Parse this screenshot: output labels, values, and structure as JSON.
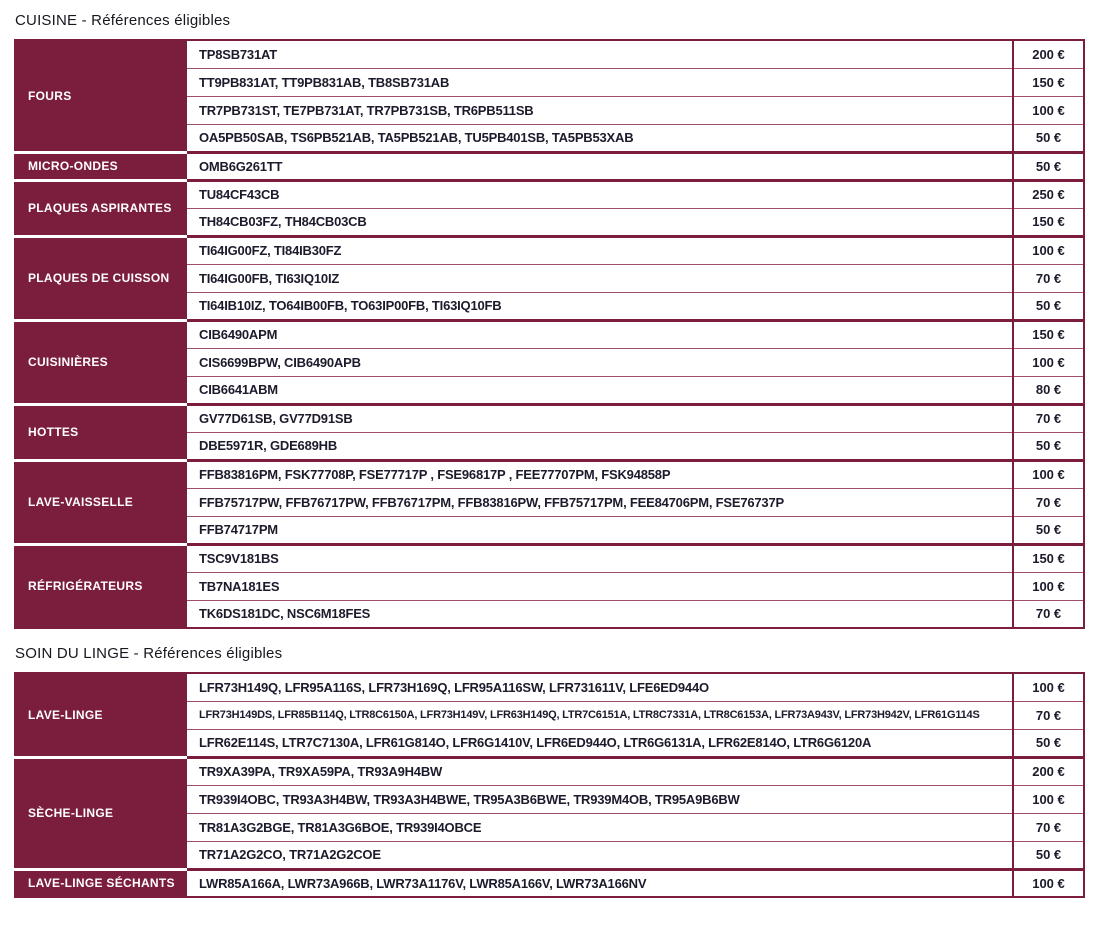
{
  "colors": {
    "accent": "#7b1e3d",
    "row_divider": "#a34d6d",
    "text": "#1b1b2c"
  },
  "sections": [
    {
      "title": "CUISINE - Références éligibles",
      "groups": [
        {
          "category": "FOURS",
          "rows": [
            {
              "refs": "TP8SB731AT",
              "price": "200 €"
            },
            {
              "refs": "TT9PB831AT, TT9PB831AB, TB8SB731AB",
              "price": "150 €"
            },
            {
              "refs": "TR7PB731ST, TE7PB731AT, TR7PB731SB, TR6PB511SB",
              "price": "100 €"
            },
            {
              "refs": "OA5PB50SAB, TS6PB521AB, TA5PB521AB, TU5PB401SB, TA5PB53XAB",
              "price": "50 €"
            }
          ]
        },
        {
          "category": "MICRO-ONDES",
          "rows": [
            {
              "refs": "OMB6G261TT",
              "price": "50 €"
            }
          ]
        },
        {
          "category": "PLAQUES ASPIRANTES",
          "rows": [
            {
              "refs": "TU84CF43CB",
              "price": "250 €"
            },
            {
              "refs": "TH84CB03FZ, TH84CB03CB",
              "price": "150 €"
            }
          ]
        },
        {
          "category": "PLAQUES DE CUISSON",
          "rows": [
            {
              "refs": "TI64IG00FZ, TI84IB30FZ",
              "price": "100 €"
            },
            {
              "refs": "TI64IG00FB, TI63IQ10IZ",
              "price": "70 €"
            },
            {
              "refs": "TI64IB10IZ, TO64IB00FB, TO63IP00FB, TI63IQ10FB",
              "price": "50 €"
            }
          ]
        },
        {
          "category": "CUISINIÈRES",
          "rows": [
            {
              "refs": "CIB6490APM",
              "price": "150 €"
            },
            {
              "refs": "CIS6699BPW, CIB6490APB",
              "price": "100 €"
            },
            {
              "refs": "CIB6641ABM",
              "price": "80 €"
            }
          ]
        },
        {
          "category": "HOTTES",
          "rows": [
            {
              "refs": "GV77D61SB, GV77D91SB",
              "price": "70 €"
            },
            {
              "refs": "DBE5971R, GDE689HB",
              "price": "50 €"
            }
          ]
        },
        {
          "category": "LAVE-VAISSELLE",
          "rows": [
            {
              "refs": "FFB83816PM, FSK77708P, FSE77717P , FSE96817P , FEE77707PM, FSK94858P",
              "price": "100 €"
            },
            {
              "refs": "FFB75717PW, FFB76717PW, FFB76717PM, FFB83816PW, FFB75717PM, FEE84706PM, FSE76737P",
              "price": "70 €"
            },
            {
              "refs": "FFB74717PM",
              "price": "50 €"
            }
          ]
        },
        {
          "category": "RÉFRIGÉRATEURS",
          "rows": [
            {
              "refs": "TSC9V181BS",
              "price": "150 €"
            },
            {
              "refs": "TB7NA181ES",
              "price": "100 €"
            },
            {
              "refs": "TK6DS181DC, NSC6M18FES",
              "price": "70 €"
            }
          ]
        }
      ]
    },
    {
      "title": "SOIN DU LINGE - Références éligibles",
      "groups": [
        {
          "category": "LAVE-LINGE",
          "rows": [
            {
              "refs": "LFR73H149Q, LFR95A116S, LFR73H169Q, LFR95A116SW, LFR731611V, LFE6ED944O",
              "price": "100 €"
            },
            {
              "refs": "LFR73H149DS, LFR85B114Q, LTR8C6150A, LFR73H149V, LFR63H149Q, LTR7C6151A, LTR8C7331A, LTR8C6153A, LFR73A943V, LFR73H942V, LFR61G114S",
              "price": "70 €"
            },
            {
              "refs": "LFR62E114S, LTR7C7130A, LFR61G814O, LFR6G1410V, LFR6ED944O, LTR6G6131A, LFR62E814O, LTR6G6120A",
              "price": "50 €"
            }
          ]
        },
        {
          "category": "SÈCHE-LINGE",
          "rows": [
            {
              "refs": "TR9XA39PA, TR9XA59PA, TR93A9H4BW",
              "price": "200 €"
            },
            {
              "refs": "TR939I4OBC, TR93A3H4BW, TR93A3H4BWE,  TR95A3B6BWE, TR939M4OB, TR95A9B6BW",
              "price": "100 €"
            },
            {
              "refs": "TR81A3G2BGE, TR81A3G6BOE, TR939I4OBCE",
              "price": "70 €"
            },
            {
              "refs": "TR71A2G2CO, TR71A2G2COE",
              "price": "50 €"
            }
          ]
        },
        {
          "category": "LAVE-LINGE SÉCHANTS",
          "rows": [
            {
              "refs": "LWR85A166A, LWR73A966B, LWR73A1176V, LWR85A166V, LWR73A166NV",
              "price": "100 €"
            }
          ]
        }
      ]
    }
  ]
}
